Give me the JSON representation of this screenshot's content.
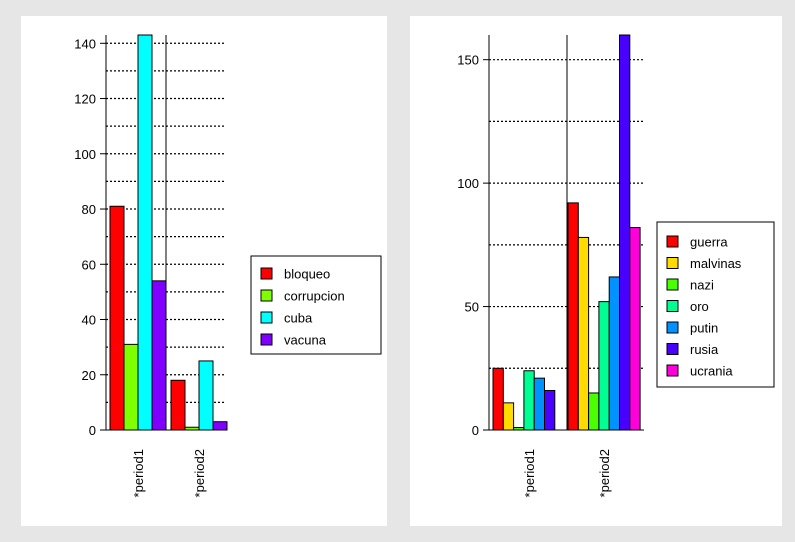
{
  "chart_data": [
    {
      "type": "bar",
      "categories": [
        "*period1",
        "*period2"
      ],
      "ylim": [
        0,
        143
      ],
      "yticks": [
        0,
        20,
        40,
        60,
        80,
        100,
        120,
        140
      ],
      "grid": true,
      "legend_position": "right",
      "series": [
        {
          "name": "bloqueo",
          "color": "#ff0000",
          "values": [
            81,
            18
          ]
        },
        {
          "name": "corrupcion",
          "color": "#80ff00",
          "values": [
            31,
            1
          ]
        },
        {
          "name": "cuba",
          "color": "#00ffff",
          "values": [
            143,
            25
          ]
        },
        {
          "name": "vacuna",
          "color": "#8000ff",
          "values": [
            54,
            3
          ]
        }
      ]
    },
    {
      "type": "bar",
      "categories": [
        "*period1",
        "*period2"
      ],
      "ylim": [
        0,
        160
      ],
      "yticks": [
        0,
        50,
        100,
        150
      ],
      "grid": true,
      "legend_position": "right",
      "series": [
        {
          "name": "guerra",
          "color": "#ff0000",
          "values": [
            25,
            92
          ]
        },
        {
          "name": "malvinas",
          "color": "#ffdb00",
          "values": [
            11,
            78
          ]
        },
        {
          "name": "nazi",
          "color": "#49ff00",
          "values": [
            1,
            15
          ]
        },
        {
          "name": "oro",
          "color": "#00ff92",
          "values": [
            24,
            52
          ]
        },
        {
          "name": "putin",
          "color": "#0092ff",
          "values": [
            21,
            62
          ]
        },
        {
          "name": "rusia",
          "color": "#4900ff",
          "values": [
            16,
            160
          ]
        },
        {
          "name": "ucrania",
          "color": "#ff00db",
          "values": [
            0,
            82
          ]
        }
      ]
    }
  ]
}
